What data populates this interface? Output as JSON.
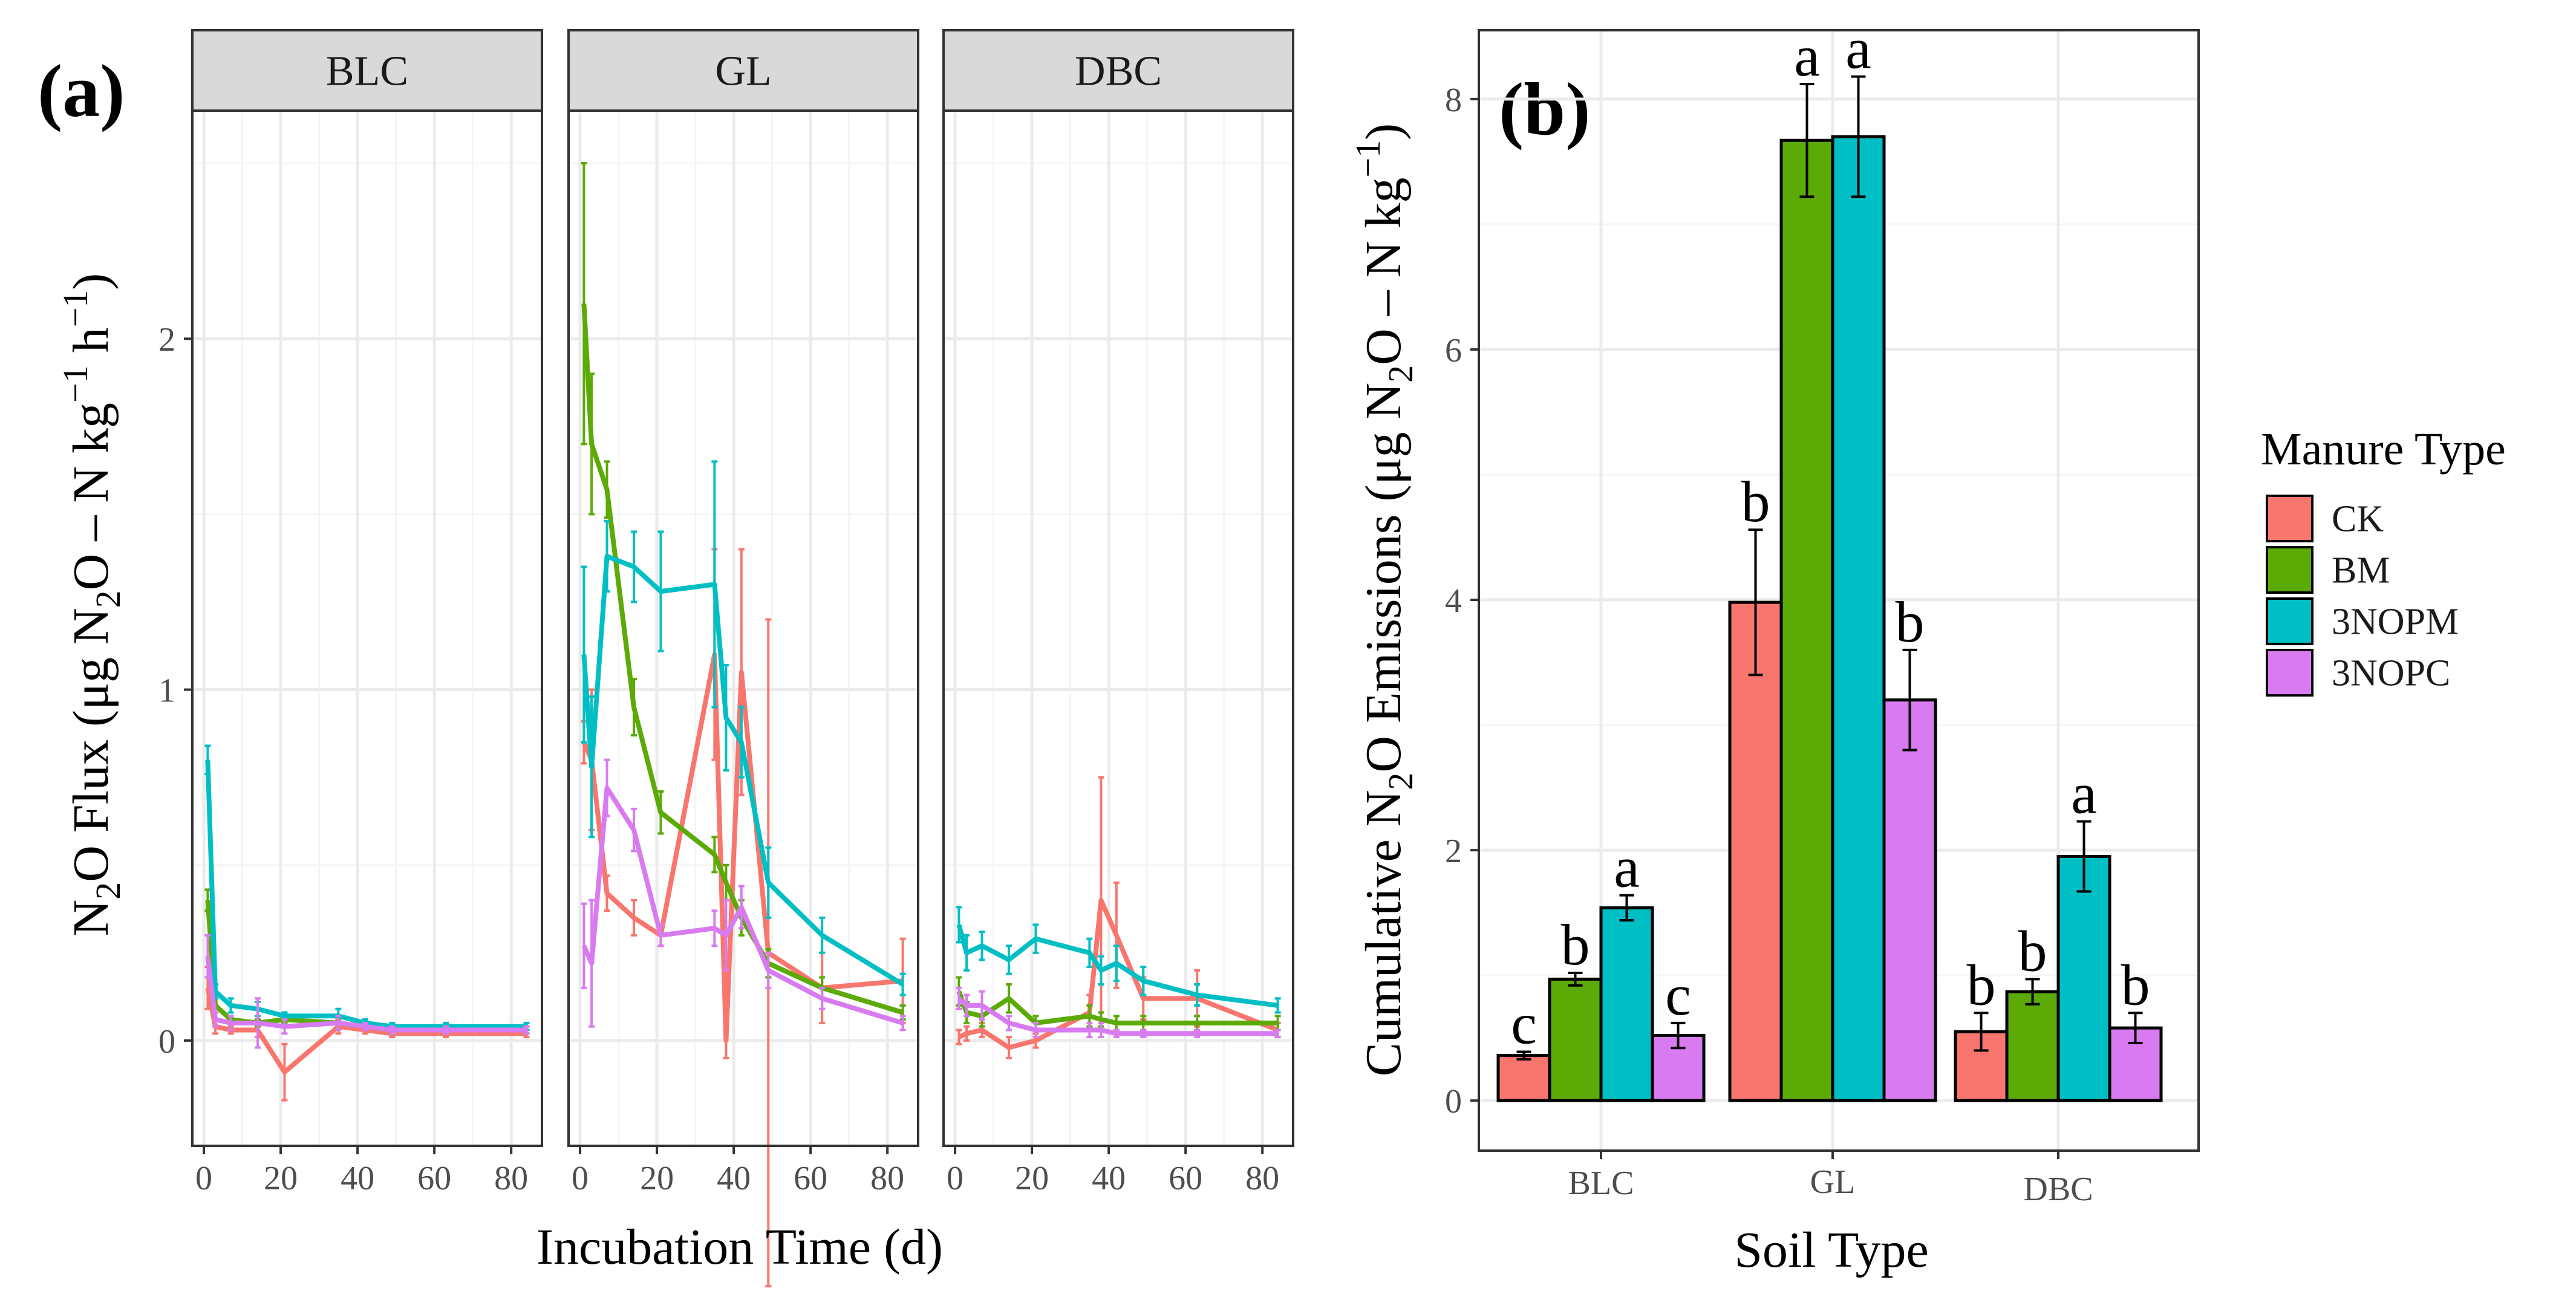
{
  "colors": {
    "CK": "#F8766D",
    "BM": "#5BAA06",
    "3NOPM": "#00BFC4",
    "3NOPC": "#D87BF0",
    "strip_bg": "#D9D9D9",
    "grid_major": "#EBEBEB",
    "grid_minor": "#F5F5F5",
    "panel_border": "#333333"
  },
  "labels": {
    "panel_a_tag": "(a)",
    "panel_b_tag": "(b)"
  },
  "legend": {
    "title": "Manure Type",
    "items": [
      "CK",
      "BM",
      "3NOPM",
      "3NOPC"
    ]
  },
  "chart_data": [
    {
      "id": "panel_a",
      "type": "line",
      "xlabel": "Incubation Time (d)",
      "ylabel_prefix": "N",
      "ylabel_sub": "2",
      "ylabel_mid": "O Flux (μg N",
      "ylabel_sub2": "2",
      "ylabel_mid2": "O – N kg",
      "ylabel_sup1": "−1",
      "ylabel_mid3": " h",
      "ylabel_sup2": "−1",
      "ylabel_end": ")",
      "xlim": [
        -3,
        88
      ],
      "ylim": [
        -0.3,
        2.65
      ],
      "xticks": [
        "0",
        "20",
        "40",
        "60",
        "80"
      ],
      "xtick_values": [
        0,
        20,
        40,
        60,
        80
      ],
      "yticks": [
        "0",
        "1",
        "2"
      ],
      "ytick_values": [
        0,
        1,
        2
      ],
      "facets": [
        {
          "name": "BLC",
          "series": [
            {
              "name": "CK",
              "x": [
                1,
                3,
                7,
                14,
                21,
                35,
                42,
                49,
                63,
                84
              ],
              "y": [
                0.15,
                0.04,
                0.03,
                0.03,
                -0.09,
                0.04,
                0.03,
                0.02,
                0.02,
                0.02
              ],
              "err": [
                0.06,
                0.02,
                0.01,
                0.02,
                0.08,
                0.02,
                0.01,
                0.01,
                0.01,
                0.01
              ]
            },
            {
              "name": "BM",
              "x": [
                1,
                3,
                7,
                14,
                21,
                35,
                42,
                49,
                63,
                84
              ],
              "y": [
                0.4,
                0.1,
                0.06,
                0.05,
                0.06,
                0.05,
                0.04,
                0.03,
                0.03,
                0.03
              ],
              "err": [
                0.03,
                0.02,
                0.01,
                0.01,
                0.01,
                0.02,
                0.01,
                0.01,
                0.01,
                0.01
              ]
            },
            {
              "name": "3NOPM",
              "x": [
                1,
                3,
                7,
                14,
                21,
                35,
                42,
                49,
                63,
                84
              ],
              "y": [
                0.8,
                0.14,
                0.1,
                0.09,
                0.07,
                0.07,
                0.05,
                0.04,
                0.04,
                0.04
              ],
              "err": [
                0.04,
                0.02,
                0.02,
                0.02,
                0.01,
                0.02,
                0.01,
                0.01,
                0.01,
                0.01
              ]
            },
            {
              "name": "3NOPC",
              "x": [
                1,
                3,
                7,
                14,
                21,
                35,
                42,
                49,
                63,
                84
              ],
              "y": [
                0.24,
                0.06,
                0.05,
                0.05,
                0.04,
                0.05,
                0.04,
                0.03,
                0.03,
                0.03
              ],
              "err": [
                0.06,
                0.02,
                0.02,
                0.07,
                0.02,
                0.02,
                0.01,
                0.01,
                0.01,
                0.01
              ]
            }
          ]
        },
        {
          "name": "GL",
          "series": [
            {
              "name": "CK",
              "x": [
                1,
                3,
                7,
                14,
                21,
                35,
                38,
                42,
                49,
                63,
                84
              ],
              "y": [
                0.85,
                0.8,
                0.42,
                0.35,
                0.3,
                1.1,
                0.0,
                1.05,
                0.25,
                0.15,
                0.17
              ],
              "err": [
                0.06,
                0.2,
                0.05,
                0.05,
                0.03,
                0.3,
                0.05,
                0.35,
                0.95,
                0.1,
                0.12
              ]
            },
            {
              "name": "BM",
              "x": [
                1,
                3,
                7,
                14,
                21,
                35,
                38,
                42,
                49,
                63,
                84
              ],
              "y": [
                2.1,
                1.7,
                1.57,
                0.95,
                0.65,
                0.53,
                0.45,
                0.35,
                0.22,
                0.15,
                0.08
              ],
              "err": [
                0.4,
                0.2,
                0.08,
                0.08,
                0.06,
                0.05,
                0.05,
                0.05,
                0.04,
                0.03,
                0.02
              ]
            },
            {
              "name": "3NOPM",
              "x": [
                1,
                3,
                7,
                14,
                21,
                35,
                38,
                42,
                49,
                63,
                84
              ],
              "y": [
                1.1,
                0.78,
                1.38,
                1.35,
                1.28,
                1.3,
                0.92,
                0.85,
                0.45,
                0.3,
                0.16
              ],
              "err": [
                0.25,
                0.2,
                0.1,
                0.1,
                0.17,
                0.35,
                0.15,
                0.1,
                0.1,
                0.05,
                0.03
              ]
            },
            {
              "name": "3NOPC",
              "x": [
                1,
                3,
                7,
                14,
                21,
                35,
                38,
                42,
                49,
                63,
                84
              ],
              "y": [
                0.27,
                0.22,
                0.72,
                0.6,
                0.3,
                0.32,
                0.3,
                0.38,
                0.2,
                0.12,
                0.05
              ],
              "err": [
                0.12,
                0.18,
                0.08,
                0.06,
                0.03,
                0.05,
                0.1,
                0.06,
                0.05,
                0.03,
                0.02
              ]
            }
          ]
        },
        {
          "name": "DBC",
          "series": [
            {
              "name": "CK",
              "x": [
                1,
                3,
                7,
                14,
                21,
                35,
                38,
                42,
                49,
                63,
                84
              ],
              "y": [
                0.01,
                0.02,
                0.03,
                -0.02,
                0.0,
                0.08,
                0.4,
                0.3,
                0.12,
                0.12,
                0.03
              ],
              "err": [
                0.02,
                0.02,
                0.02,
                0.03,
                0.02,
                0.05,
                0.35,
                0.15,
                0.06,
                0.08,
                0.02
              ]
            },
            {
              "name": "BM",
              "x": [
                1,
                3,
                7,
                14,
                21,
                35,
                38,
                42,
                49,
                63,
                84
              ],
              "y": [
                0.14,
                0.08,
                0.07,
                0.12,
                0.05,
                0.07,
                0.06,
                0.05,
                0.05,
                0.05,
                0.05
              ],
              "err": [
                0.04,
                0.03,
                0.03,
                0.04,
                0.02,
                0.03,
                0.02,
                0.02,
                0.02,
                0.02,
                0.02
              ]
            },
            {
              "name": "3NOPM",
              "x": [
                1,
                3,
                7,
                14,
                21,
                35,
                38,
                42,
                49,
                63,
                84
              ],
              "y": [
                0.33,
                0.25,
                0.27,
                0.23,
                0.29,
                0.25,
                0.2,
                0.22,
                0.17,
                0.13,
                0.1
              ],
              "err": [
                0.05,
                0.05,
                0.04,
                0.04,
                0.04,
                0.04,
                0.04,
                0.05,
                0.04,
                0.03,
                0.02
              ]
            },
            {
              "name": "3NOPC",
              "x": [
                1,
                3,
                7,
                14,
                21,
                35,
                38,
                42,
                49,
                63,
                84
              ],
              "y": [
                0.12,
                0.1,
                0.1,
                0.05,
                0.03,
                0.03,
                0.03,
                0.02,
                0.02,
                0.02,
                0.02
              ],
              "err": [
                0.03,
                0.03,
                0.04,
                0.02,
                0.02,
                0.02,
                0.02,
                0.01,
                0.01,
                0.01,
                0.01
              ]
            }
          ]
        }
      ]
    },
    {
      "id": "panel_b",
      "type": "bar",
      "xlabel": "Soil Type",
      "ylabel_prefix": "Cumulative N",
      "ylabel_sub": "2",
      "ylabel_mid": "O Emissions (μg N",
      "ylabel_sub2": "2",
      "ylabel_mid2": "O – N kg",
      "ylabel_sup1": "−1",
      "ylabel_end": ")",
      "categories": [
        "BLC",
        "GL",
        "DBC"
      ],
      "ylim": [
        -0.4,
        8.55
      ],
      "yticks": [
        "0",
        "2",
        "4",
        "6",
        "8"
      ],
      "ytick_values": [
        0,
        2,
        4,
        6,
        8
      ],
      "series": [
        {
          "name": "CK",
          "values": [
            0.36,
            3.98,
            0.55
          ],
          "err": [
            0.03,
            0.58,
            0.15
          ],
          "letters": [
            "c",
            "b",
            "b"
          ]
        },
        {
          "name": "BM",
          "values": [
            0.97,
            7.67,
            0.87
          ],
          "err": [
            0.05,
            0.45,
            0.1
          ],
          "letters": [
            "b",
            "a",
            "b"
          ]
        },
        {
          "name": "3NOPM",
          "values": [
            1.54,
            7.7,
            1.95
          ],
          "err": [
            0.1,
            0.48,
            0.28
          ],
          "letters": [
            "a",
            "a",
            "a"
          ]
        },
        {
          "name": "3NOPC",
          "values": [
            0.52,
            3.2,
            0.58
          ],
          "err": [
            0.1,
            0.4,
            0.12
          ],
          "letters": [
            "c",
            "b",
            "b"
          ]
        }
      ]
    }
  ]
}
